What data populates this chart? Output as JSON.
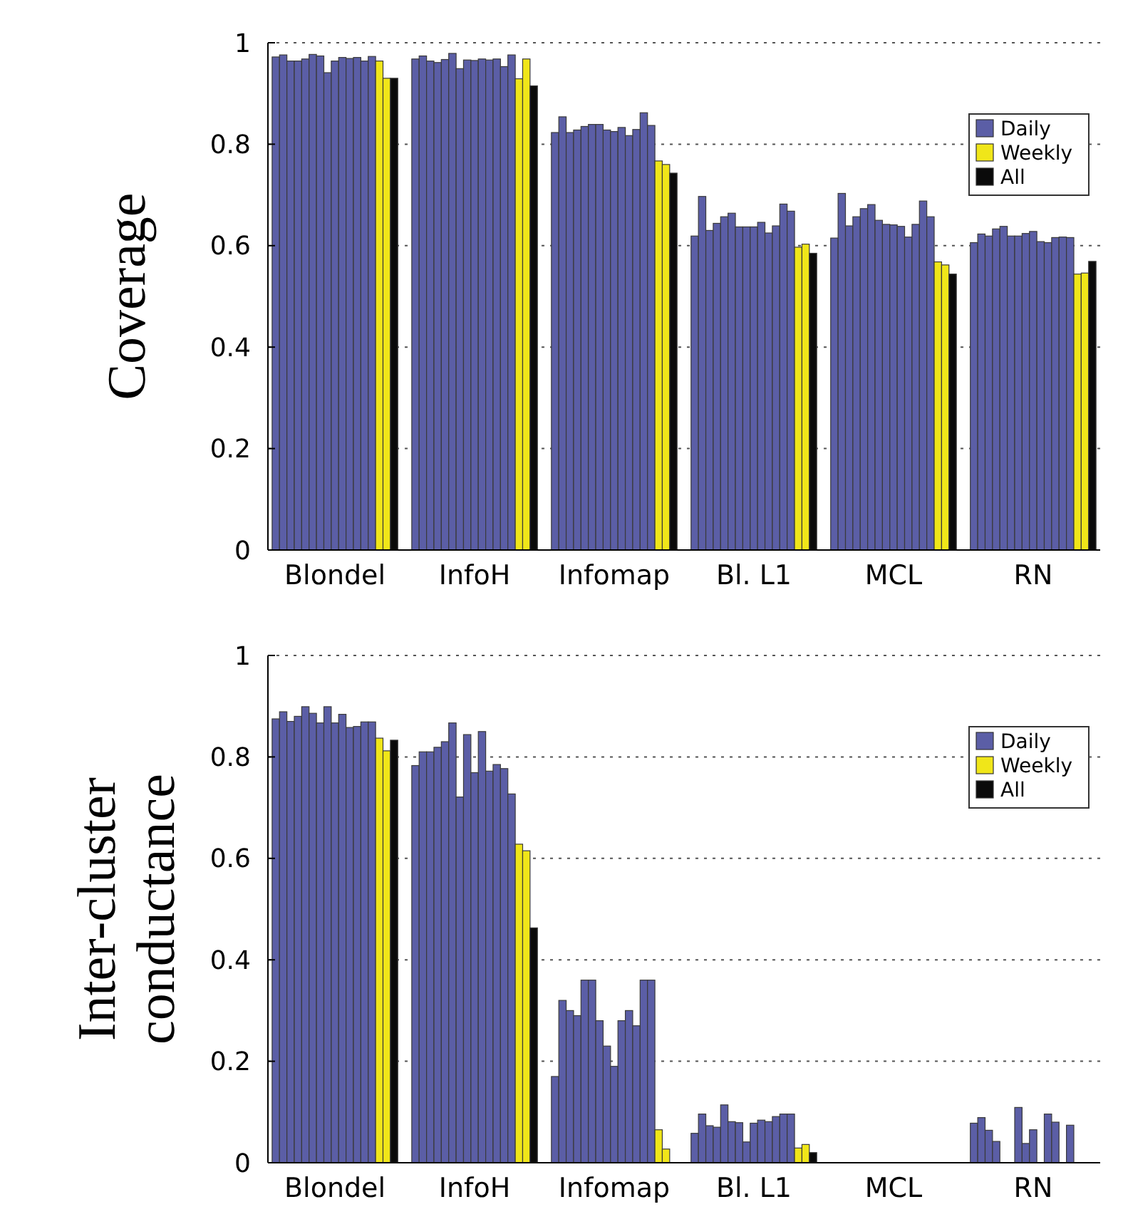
{
  "chart_data": [
    {
      "type": "bar",
      "ylabel": "Coverage",
      "categories": [
        "Blondel",
        "InfoH",
        "Infomap",
        "Bl. L1",
        "MCL",
        "RN"
      ],
      "ylim": [
        0,
        1
      ],
      "yticks": [
        0,
        0.2,
        0.4,
        0.6,
        0.8,
        1
      ],
      "grid": "y",
      "legend": "top right",
      "series": [
        {
          "name": "Daily",
          "color": "#5b5ea6",
          "values": [
            0.972,
            0.968,
            0.823,
            0.619,
            0.615,
            0.606
          ]
        },
        {
          "color": "#5b5ea6",
          "values": [
            0.976,
            0.974,
            0.854,
            0.697,
            0.703,
            0.623
          ]
        },
        {
          "color": "#5b5ea6",
          "values": [
            0.964,
            0.964,
            0.823,
            0.63,
            0.639,
            0.619
          ]
        },
        {
          "color": "#5b5ea6",
          "values": [
            0.964,
            0.961,
            0.828,
            0.644,
            0.657,
            0.633
          ]
        },
        {
          "color": "#5b5ea6",
          "values": [
            0.968,
            0.967,
            0.835,
            0.657,
            0.673,
            0.638
          ]
        },
        {
          "color": "#5b5ea6",
          "values": [
            0.977,
            0.979,
            0.839,
            0.664,
            0.681,
            0.619
          ]
        },
        {
          "color": "#5b5ea6",
          "values": [
            0.974,
            0.949,
            0.839,
            0.637,
            0.65,
            0.619
          ]
        },
        {
          "color": "#5b5ea6",
          "values": [
            0.941,
            0.966,
            0.828,
            0.637,
            0.642,
            0.624
          ]
        },
        {
          "color": "#5b5ea6",
          "values": [
            0.964,
            0.965,
            0.825,
            0.637,
            0.641,
            0.628
          ]
        },
        {
          "color": "#5b5ea6",
          "values": [
            0.971,
            0.968,
            0.833,
            0.646,
            0.638,
            0.608
          ]
        },
        {
          "color": "#5b5ea6",
          "values": [
            0.969,
            0.966,
            0.817,
            0.625,
            0.617,
            0.606
          ]
        },
        {
          "color": "#5b5ea6",
          "values": [
            0.971,
            0.968,
            0.829,
            0.639,
            0.642,
            0.616
          ]
        },
        {
          "color": "#5b5ea6",
          "values": [
            0.964,
            0.953,
            0.862,
            0.682,
            0.688,
            0.617
          ]
        },
        {
          "color": "#5b5ea6",
          "values": [
            0.973,
            0.976,
            0.837,
            0.668,
            0.657,
            0.616
          ]
        },
        {
          "name": "Weekly",
          "color": "#f0e619",
          "values": [
            0.964,
            0.929,
            0.767,
            0.597,
            0.568,
            0.544
          ]
        },
        {
          "color": "#f0e619",
          "values": [
            0.93,
            0.968,
            0.76,
            0.603,
            0.562,
            0.546
          ]
        },
        {
          "name": "All",
          "color": "#0a0a0a",
          "values": [
            0.93,
            0.915,
            0.743,
            0.585,
            0.544,
            0.569
          ]
        }
      ]
    },
    {
      "type": "bar",
      "ylabel": "Inter-cluster conductance",
      "categories": [
        "Blondel",
        "InfoH",
        "Infomap",
        "Bl. L1",
        "MCL",
        "RN"
      ],
      "ylim": [
        0,
        1
      ],
      "yticks": [
        0,
        0.2,
        0.4,
        0.6,
        0.8,
        1
      ],
      "grid": "y",
      "legend": "top right",
      "series": [
        {
          "name": "Daily",
          "color": "#5b5ea6",
          "values": [
            0.875,
            0.783,
            0.17,
            0.058,
            0,
            0.078
          ]
        },
        {
          "color": "#5b5ea6",
          "values": [
            0.889,
            0.81,
            0.32,
            0.096,
            0,
            0.089
          ]
        },
        {
          "color": "#5b5ea6",
          "values": [
            0.87,
            0.81,
            0.3,
            0.073,
            0,
            0.064
          ]
        },
        {
          "color": "#5b5ea6",
          "values": [
            0.88,
            0.819,
            0.29,
            0.07,
            0,
            0.042
          ]
        },
        {
          "color": "#5b5ea6",
          "values": [
            0.899,
            0.83,
            0.36,
            0.114,
            0,
            null
          ]
        },
        {
          "color": "#5b5ea6",
          "values": [
            0.886,
            0.867,
            0.36,
            0.081,
            0,
            null
          ]
        },
        {
          "color": "#5b5ea6",
          "values": [
            0.867,
            0.721,
            0.28,
            0.079,
            0,
            0.109
          ]
        },
        {
          "color": "#5b5ea6",
          "values": [
            0.899,
            0.844,
            0.23,
            0.041,
            0,
            0.038
          ]
        },
        {
          "color": "#5b5ea6",
          "values": [
            0.867,
            0.769,
            0.19,
            0.078,
            0,
            0.065
          ]
        },
        {
          "color": "#5b5ea6",
          "values": [
            0.884,
            0.85,
            0.28,
            0.084,
            0,
            null
          ]
        },
        {
          "color": "#5b5ea6",
          "values": [
            0.858,
            0.772,
            0.3,
            0.081,
            0,
            0.096
          ]
        },
        {
          "color": "#5b5ea6",
          "values": [
            0.86,
            0.785,
            0.27,
            0.091,
            0,
            0.08
          ]
        },
        {
          "color": "#5b5ea6",
          "values": [
            0.869,
            0.777,
            0.36,
            0.096,
            0,
            null
          ]
        },
        {
          "color": "#5b5ea6",
          "values": [
            0.869,
            0.727,
            0.36,
            0.096,
            0,
            0.074
          ]
        },
        {
          "name": "Weekly",
          "color": "#f0e619",
          "values": [
            0.837,
            0.628,
            0.065,
            0.029,
            0,
            null
          ]
        },
        {
          "color": "#f0e619",
          "values": [
            0.812,
            0.615,
            0.027,
            0.036,
            0,
            null
          ]
        },
        {
          "name": "All",
          "color": "#0a0a0a",
          "values": [
            0.833,
            0.463,
            0,
            0.02,
            0,
            null
          ]
        }
      ]
    }
  ]
}
